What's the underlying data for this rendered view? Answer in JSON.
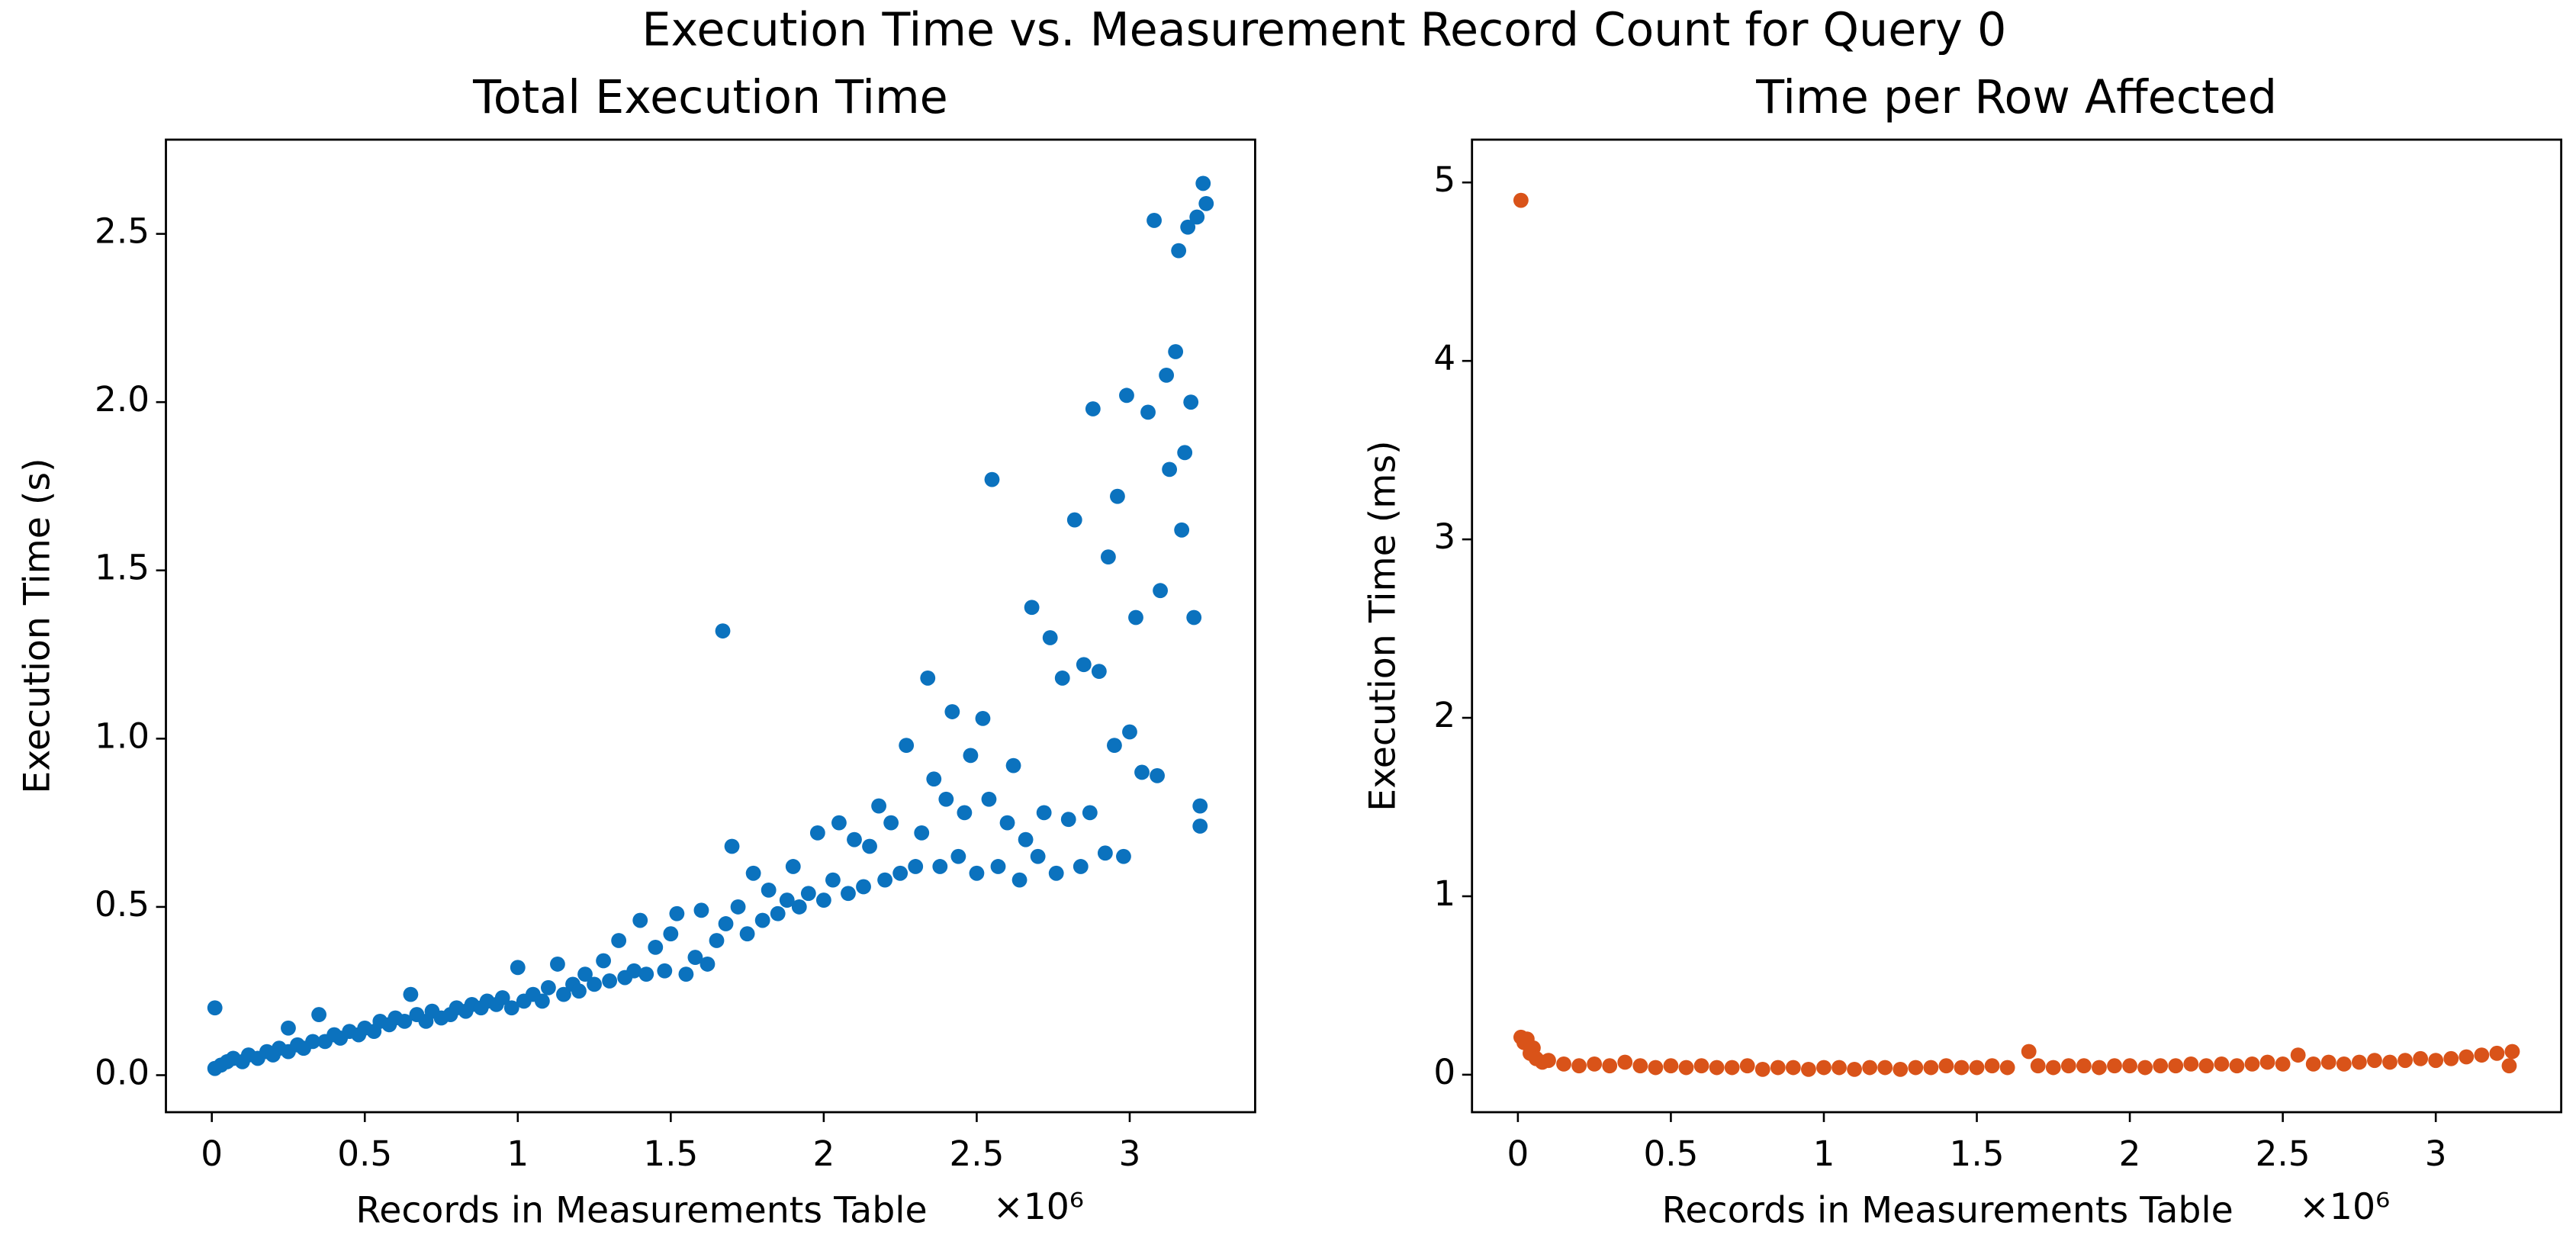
{
  "title": "Execution Time vs. Measurement Record Count for Query 0",
  "chart_data": [
    {
      "type": "scatter",
      "title": "Total Execution Time",
      "xlabel": "Records in Measurements Table",
      "x_offset_label": "×10⁶",
      "ylabel": "Execution Time (s)",
      "color": "#0b72be",
      "xlim": [
        -0.15,
        3.41
      ],
      "xticks": [
        0,
        0.5,
        1,
        1.5,
        2,
        2.5,
        3
      ],
      "ylim": [
        -0.11,
        2.78
      ],
      "yticks": [
        {
          "value": 0,
          "label": "0.0"
        },
        {
          "value": 0.5,
          "label": "0.5"
        },
        {
          "value": 1,
          "label": "1.0"
        },
        {
          "value": 1.5,
          "label": "1.5"
        },
        {
          "value": 2,
          "label": "2.0"
        },
        {
          "value": 2.5,
          "label": "2.5"
        }
      ],
      "x": [
        0.01,
        0.01,
        0.03,
        0.05,
        0.07,
        0.1,
        0.12,
        0.15,
        0.18,
        0.2,
        0.22,
        0.25,
        0.25,
        0.28,
        0.3,
        0.33,
        0.35,
        0.37,
        0.4,
        0.42,
        0.45,
        0.48,
        0.5,
        0.53,
        0.55,
        0.58,
        0.6,
        0.63,
        0.65,
        0.67,
        0.7,
        0.72,
        0.75,
        0.78,
        0.8,
        0.83,
        0.85,
        0.88,
        0.9,
        0.93,
        0.95,
        0.98,
        1.0,
        1.02,
        1.05,
        1.08,
        1.1,
        1.13,
        1.15,
        1.18,
        1.2,
        1.22,
        1.25,
        1.28,
        1.3,
        1.33,
        1.35,
        1.38,
        1.4,
        1.42,
        1.45,
        1.48,
        1.5,
        1.52,
        1.55,
        1.58,
        1.6,
        1.62,
        1.65,
        1.67,
        1.68,
        1.7,
        1.72,
        1.75,
        1.77,
        1.8,
        1.82,
        1.85,
        1.88,
        1.9,
        1.92,
        1.95,
        1.98,
        2.0,
        2.03,
        2.05,
        2.08,
        2.1,
        2.13,
        2.15,
        2.18,
        2.2,
        2.22,
        2.25,
        2.27,
        2.3,
        2.32,
        2.34,
        2.36,
        2.38,
        2.4,
        2.42,
        2.44,
        2.46,
        2.48,
        2.5,
        2.52,
        2.54,
        2.55,
        2.57,
        2.6,
        2.62,
        2.64,
        2.66,
        2.68,
        2.7,
        2.72,
        2.74,
        2.76,
        2.78,
        2.8,
        2.82,
        2.84,
        2.85,
        2.87,
        2.88,
        2.9,
        2.92,
        2.93,
        2.95,
        2.96,
        2.98,
        2.99,
        3.0,
        3.02,
        3.04,
        3.06,
        3.08,
        3.09,
        3.1,
        3.12,
        3.13,
        3.15,
        3.16,
        3.17,
        3.18,
        3.19,
        3.2,
        3.21,
        3.22,
        3.23,
        3.23,
        3.24,
        3.25
      ],
      "values": [
        0.2,
        0.02,
        0.03,
        0.04,
        0.05,
        0.04,
        0.06,
        0.05,
        0.07,
        0.06,
        0.08,
        0.07,
        0.14,
        0.09,
        0.08,
        0.1,
        0.18,
        0.1,
        0.12,
        0.11,
        0.13,
        0.12,
        0.14,
        0.13,
        0.16,
        0.15,
        0.17,
        0.16,
        0.24,
        0.18,
        0.16,
        0.19,
        0.17,
        0.18,
        0.2,
        0.19,
        0.21,
        0.2,
        0.22,
        0.21,
        0.23,
        0.2,
        0.32,
        0.22,
        0.24,
        0.22,
        0.26,
        0.33,
        0.24,
        0.27,
        0.25,
        0.3,
        0.27,
        0.34,
        0.28,
        0.4,
        0.29,
        0.31,
        0.46,
        0.3,
        0.38,
        0.31,
        0.42,
        0.48,
        0.3,
        0.35,
        0.49,
        0.33,
        0.4,
        1.32,
        0.45,
        0.68,
        0.5,
        0.42,
        0.6,
        0.46,
        0.55,
        0.48,
        0.52,
        0.62,
        0.5,
        0.54,
        0.72,
        0.52,
        0.58,
        0.75,
        0.54,
        0.7,
        0.56,
        0.68,
        0.8,
        0.58,
        0.75,
        0.6,
        0.98,
        0.62,
        0.72,
        1.18,
        0.88,
        0.62,
        0.82,
        1.08,
        0.65,
        0.78,
        0.95,
        0.6,
        1.06,
        0.82,
        1.77,
        0.62,
        0.75,
        0.92,
        0.58,
        0.7,
        1.39,
        0.65,
        0.78,
        1.3,
        0.6,
        1.18,
        0.76,
        1.65,
        0.62,
        1.22,
        0.78,
        1.98,
        1.2,
        0.66,
        1.54,
        0.98,
        1.72,
        0.65,
        2.02,
        1.02,
        1.36,
        0.9,
        1.97,
        2.54,
        0.89,
        1.44,
        2.08,
        1.8,
        2.15,
        2.45,
        1.62,
        1.85,
        2.52,
        2.0,
        1.36,
        2.55,
        0.74,
        0.8,
        2.65,
        2.59
      ]
    },
    {
      "type": "scatter",
      "title": "Time per Row Affected",
      "xlabel": "Records in Measurements Table",
      "x_offset_label": "×10⁶",
      "ylabel": "Execution Time (ms)",
      "color": "#d95319",
      "xlim": [
        -0.15,
        3.41
      ],
      "xticks": [
        0,
        0.5,
        1,
        1.5,
        2,
        2.5,
        3
      ],
      "ylim": [
        -0.21,
        5.24
      ],
      "yticks": [
        0,
        1,
        2,
        3,
        4,
        5
      ],
      "x": [
        0.01,
        0.01,
        0.02,
        0.03,
        0.04,
        0.05,
        0.06,
        0.08,
        0.1,
        0.15,
        0.2,
        0.25,
        0.3,
        0.35,
        0.4,
        0.45,
        0.5,
        0.55,
        0.6,
        0.65,
        0.7,
        0.75,
        0.8,
        0.85,
        0.9,
        0.95,
        1.0,
        1.05,
        1.1,
        1.15,
        1.2,
        1.25,
        1.3,
        1.35,
        1.4,
        1.45,
        1.5,
        1.55,
        1.6,
        1.67,
        1.7,
        1.75,
        1.8,
        1.85,
        1.9,
        1.95,
        2.0,
        2.05,
        2.1,
        2.15,
        2.2,
        2.25,
        2.3,
        2.35,
        2.4,
        2.45,
        2.5,
        2.55,
        2.6,
        2.65,
        2.7,
        2.75,
        2.8,
        2.85,
        2.9,
        2.95,
        3.0,
        3.05,
        3.1,
        3.15,
        3.2,
        3.24,
        3.25
      ],
      "values": [
        4.9,
        0.21,
        0.18,
        0.2,
        0.12,
        0.15,
        0.09,
        0.07,
        0.08,
        0.06,
        0.05,
        0.06,
        0.05,
        0.07,
        0.05,
        0.04,
        0.05,
        0.04,
        0.05,
        0.04,
        0.04,
        0.05,
        0.03,
        0.04,
        0.04,
        0.03,
        0.04,
        0.04,
        0.03,
        0.04,
        0.04,
        0.03,
        0.04,
        0.04,
        0.05,
        0.04,
        0.04,
        0.05,
        0.04,
        0.13,
        0.05,
        0.04,
        0.05,
        0.05,
        0.04,
        0.05,
        0.05,
        0.04,
        0.05,
        0.05,
        0.06,
        0.05,
        0.06,
        0.05,
        0.06,
        0.07,
        0.06,
        0.11,
        0.06,
        0.07,
        0.06,
        0.07,
        0.08,
        0.07,
        0.08,
        0.09,
        0.08,
        0.09,
        0.1,
        0.11,
        0.12,
        0.05,
        0.13
      ]
    }
  ]
}
